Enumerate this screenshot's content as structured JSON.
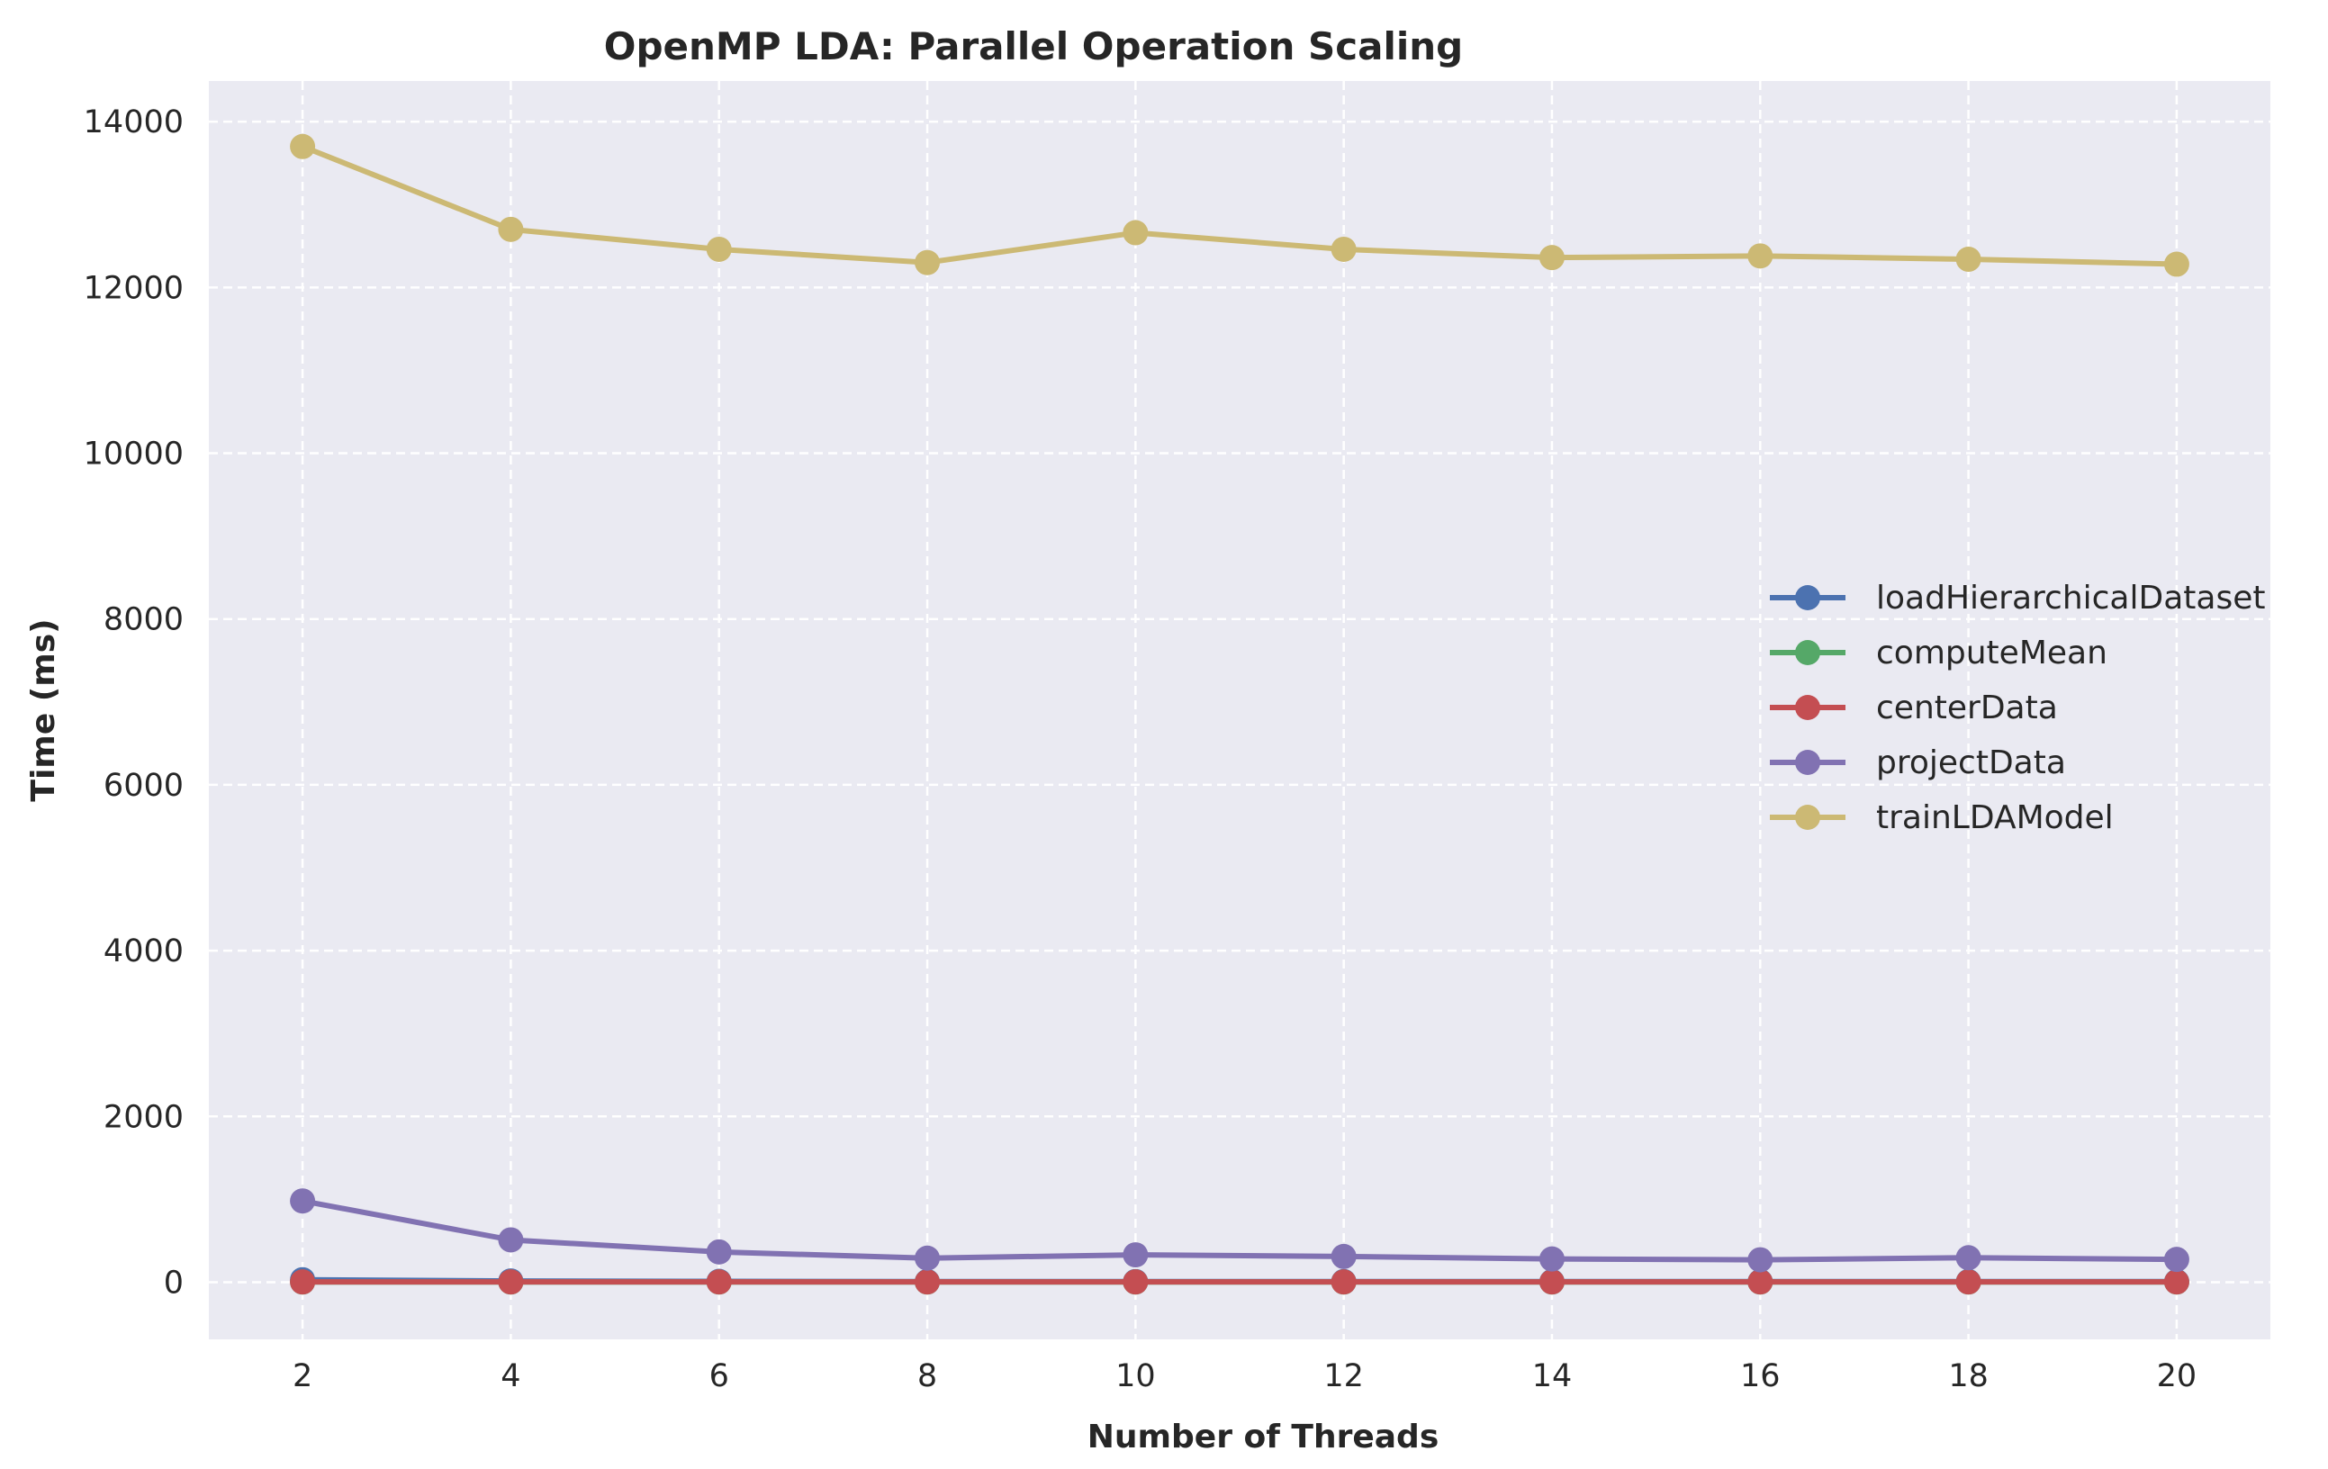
{
  "chart_data": {
    "type": "line",
    "title": "OpenMP LDA: Parallel Operation Scaling",
    "xlabel": "Number of Threads",
    "ylabel": "Time (ms)",
    "x": [
      2,
      4,
      6,
      8,
      10,
      12,
      14,
      16,
      18,
      20
    ],
    "xticks": [
      "2",
      "4",
      "6",
      "8",
      "10",
      "12",
      "14",
      "16",
      "18",
      "20"
    ],
    "yticks": [
      "0",
      "2000",
      "4000",
      "6000",
      "8000",
      "10000",
      "12000",
      "14000"
    ],
    "ytick_values": [
      0,
      2000,
      4000,
      6000,
      8000,
      10000,
      12000,
      14000
    ],
    "xlim": [
      1.1,
      20.9
    ],
    "ylim": [
      -690,
      14490
    ],
    "grid": true,
    "legend_position": "center-right",
    "background": "#eaeaf2",
    "series": [
      {
        "name": "loadHierarchicalDataset",
        "color": "#4c72b0",
        "values": [
          30,
          15,
          10,
          8,
          8,
          8,
          8,
          8,
          8,
          8
        ]
      },
      {
        "name": "computeMean",
        "color": "#55a868",
        "values": [
          2,
          2,
          2,
          2,
          2,
          2,
          2,
          2,
          2,
          2
        ]
      },
      {
        "name": "centerData",
        "color": "#c44e52",
        "values": [
          3,
          3,
          3,
          3,
          3,
          3,
          3,
          3,
          3,
          3
        ]
      },
      {
        "name": "projectData",
        "color": "#8172b2",
        "values": [
          980,
          510,
          365,
          290,
          330,
          310,
          280,
          270,
          295,
          275
        ]
      },
      {
        "name": "trainLDAModel",
        "color": "#ccb974",
        "values": [
          13700,
          12700,
          12460,
          12300,
          12660,
          12460,
          12360,
          12380,
          12340,
          12280
        ]
      }
    ]
  }
}
